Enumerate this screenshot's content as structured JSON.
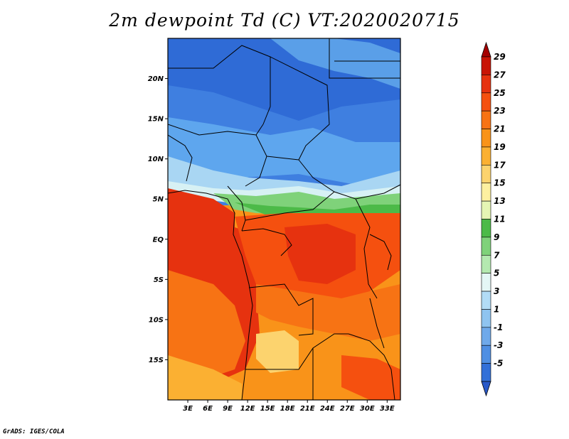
{
  "title": "2m dewpoint Td (C) VT:2020020715",
  "footer": "GrADS: IGES/COLA",
  "axes": {
    "lat_labels": [
      "20N",
      "15N",
      "10N",
      "5N",
      "EQ",
      "5S",
      "10S",
      "15S"
    ],
    "lon_labels": [
      "3E",
      "6E",
      "9E",
      "12E",
      "15E",
      "18E",
      "21E",
      "24E",
      "27E",
      "30E",
      "33E"
    ]
  },
  "colorbar": {
    "labels": [
      "29",
      "27",
      "25",
      "23",
      "21",
      "19",
      "17",
      "15",
      "13",
      "11",
      "9",
      "7",
      "5",
      "3",
      "1",
      "-1",
      "-3",
      "-5"
    ],
    "colors": [
      "#a50000",
      "#c81405",
      "#e6320f",
      "#f5500f",
      "#f77314",
      "#f99319",
      "#fbb032",
      "#fcd36e",
      "#fdf0a0",
      "#e5f5b4",
      "#4cba48",
      "#7fd27a",
      "#b4e9b0",
      "#e4f7f6",
      "#b2dcf6",
      "#8fc4f0",
      "#6fa9ea",
      "#4f8fe3",
      "#3270d8",
      "#2858c8"
    ]
  },
  "chart_data": {
    "type": "heatmap",
    "title": "2m dewpoint Td (C) VT:2020020715",
    "variable": "2m dewpoint Td (C)",
    "valid_time": "2020020715",
    "lon_range": [
      0,
      35
    ],
    "lat_range": [
      -20,
      25
    ],
    "contour_levels": [
      -5,
      -3,
      -1,
      1,
      3,
      5,
      7,
      9,
      11,
      13,
      15,
      17,
      19,
      21,
      23,
      25,
      27,
      29
    ]
  }
}
